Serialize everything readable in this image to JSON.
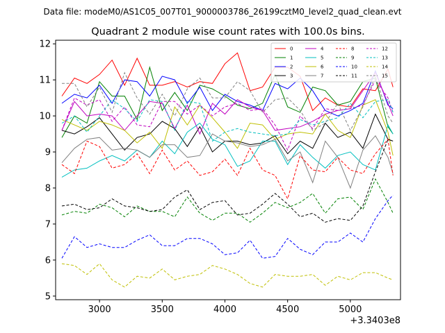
{
  "header": {
    "file_line": "Data file: modeM0/AS1C05_007T01_9000003786_26199cztM0_level2_quad_clean.evt"
  },
  "chart_data": {
    "type": "line",
    "title": "Quadrant 2 module wise count rates with 100.0s bins.",
    "xlabel": "",
    "ylabel": "",
    "x_offset_label": "+3.3403e8",
    "xlim": [
      2650,
      5400
    ],
    "ylim": [
      4.9,
      12.1
    ],
    "x_ticks": [
      3000,
      3500,
      4000,
      4500,
      5000
    ],
    "y_ticks": [
      5,
      6,
      7,
      8,
      9,
      10,
      11,
      12
    ],
    "legend_position": "top-right",
    "x": [
      2700,
      2800,
      2900,
      3000,
      3100,
      3200,
      3300,
      3400,
      3500,
      3600,
      3700,
      3800,
      3900,
      4000,
      4100,
      4200,
      4300,
      4400,
      4500,
      4600,
      4700,
      4800,
      4900,
      5000,
      5100,
      5200,
      5300,
      5340
    ],
    "series": [
      {
        "name": "0",
        "color": "#ff0000",
        "style": "solid",
        "values": [
          10.55,
          11.05,
          10.9,
          11.15,
          11.55,
          10.85,
          11.6,
          10.85,
          10.85,
          10.95,
          10.8,
          10.95,
          10.9,
          11.45,
          11.75,
          10.7,
          10.8,
          11.35,
          11.35,
          11.1,
          10.15,
          10.5,
          10.3,
          10.25,
          10.75,
          10.7,
          11.3,
          10.8
        ]
      },
      {
        "name": "1",
        "color": "#008000",
        "style": "solid",
        "values": [
          9.4,
          10.0,
          9.8,
          10.95,
          10.55,
          10.55,
          9.9,
          11.35,
          10.15,
          10.65,
          10.15,
          10.85,
          10.75,
          10.55,
          10.3,
          10.2,
          10.35,
          11.15,
          10.25,
          10.1,
          10.8,
          10.7,
          10.3,
          10.4,
          10.95,
          11.05,
          9.7,
          9.5
        ]
      },
      {
        "name": "2",
        "color": "#0000ff",
        "style": "solid",
        "values": [
          10.35,
          10.6,
          10.5,
          10.85,
          10.35,
          11.0,
          10.95,
          10.55,
          11.1,
          11.0,
          10.35,
          10.8,
          10.15,
          10.6,
          10.4,
          10.3,
          10.15,
          10.9,
          10.75,
          11.05,
          10.7,
          10.15,
          10.0,
          10.15,
          10.35,
          11.25,
          10.3,
          10.2
        ]
      },
      {
        "name": "3",
        "color": "#000000",
        "style": "solid",
        "values": [
          9.6,
          9.5,
          9.7,
          9.95,
          9.5,
          9.05,
          9.4,
          9.5,
          9.85,
          9.65,
          9.15,
          9.7,
          9.0,
          9.3,
          9.3,
          9.2,
          9.25,
          9.45,
          8.95,
          9.3,
          9.1,
          9.8,
          9.4,
          9.55,
          9.1,
          10.05,
          9.35,
          9.3
        ]
      },
      {
        "name": "4",
        "color": "#bf00bf",
        "style": "solid",
        "values": [
          9.6,
          10.4,
          10.0,
          10.05,
          10.0,
          9.6,
          10.0,
          10.4,
          10.35,
          9.65,
          10.3,
          9.5,
          10.35,
          10.05,
          10.45,
          10.25,
          10.15,
          9.6,
          9.65,
          9.7,
          9.85,
          10.05,
          10.15,
          10.2,
          10.7,
          11.2,
          10.35,
          10.0
        ]
      },
      {
        "name": "5",
        "color": "#00bfbf",
        "style": "solid",
        "values": [
          8.3,
          8.5,
          8.55,
          8.75,
          8.9,
          8.75,
          9.05,
          8.85,
          9.3,
          8.95,
          9.55,
          9.8,
          9.35,
          9.2,
          8.6,
          8.75,
          9.3,
          9.3,
          8.65,
          9.2,
          8.85,
          8.55,
          8.9,
          9.0,
          8.65,
          8.5,
          9.75,
          9.5
        ]
      },
      {
        "name": "6",
        "color": "#bfbf00",
        "style": "solid",
        "values": [
          9.9,
          9.75,
          9.6,
          9.85,
          9.75,
          9.6,
          9.25,
          9.55,
          9.1,
          10.25,
          9.75,
          10.3,
          9.95,
          9.55,
          9.1,
          9.8,
          9.75,
          9.35,
          9.5,
          9.55,
          9.5,
          10.05,
          9.6,
          9.4,
          10.3,
          10.45,
          9.55,
          8.9
        ]
      },
      {
        "name": "7",
        "color": "#808080",
        "style": "solid",
        "values": [
          8.7,
          9.1,
          9.35,
          9.4,
          9.05,
          9.1,
          9.05,
          8.85,
          9.2,
          9.2,
          8.85,
          8.9,
          9.5,
          9.3,
          9.25,
          9.15,
          9.2,
          9.35,
          8.75,
          9.0,
          8.15,
          9.3,
          8.85,
          8.0,
          9.05,
          9.45,
          8.85,
          8.4
        ]
      },
      {
        "name": "8",
        "color": "#ff0000",
        "style": "dashed",
        "values": [
          8.65,
          8.4,
          9.3,
          9.15,
          8.55,
          8.65,
          8.95,
          8.4,
          9.05,
          8.5,
          8.75,
          8.35,
          8.45,
          8.8,
          8.35,
          9.1,
          8.5,
          8.35,
          7.7,
          8.9,
          8.5,
          8.45,
          8.85,
          8.5,
          8.4,
          8.95,
          9.35,
          8.35
        ]
      },
      {
        "name": "9",
        "color": "#008000",
        "style": "dashed",
        "values": [
          7.25,
          7.35,
          7.3,
          7.55,
          7.45,
          7.2,
          7.5,
          7.35,
          7.35,
          7.2,
          7.75,
          7.3,
          7.1,
          7.3,
          7.3,
          7.05,
          7.3,
          7.6,
          7.45,
          7.6,
          7.85,
          7.3,
          7.7,
          7.75,
          7.4,
          8.25,
          7.6,
          7.3
        ]
      },
      {
        "name": "10",
        "color": "#0000ff",
        "style": "dashed",
        "values": [
          6.05,
          6.65,
          6.35,
          6.45,
          6.35,
          6.35,
          6.55,
          6.7,
          6.4,
          6.4,
          6.6,
          6.6,
          6.45,
          6.15,
          6.2,
          6.55,
          6.05,
          6.1,
          6.6,
          6.3,
          6.15,
          6.5,
          6.5,
          6.75,
          6.5,
          7.15,
          7.65,
          7.8
        ]
      },
      {
        "name": "11",
        "color": "#000000",
        "style": "dashed",
        "values": [
          7.5,
          7.55,
          7.4,
          7.45,
          7.7,
          7.5,
          7.45,
          7.35,
          7.4,
          7.75,
          7.95,
          7.4,
          7.6,
          7.65,
          7.25,
          7.3,
          7.55,
          7.85,
          7.55,
          7.2,
          7.3,
          7.05,
          7.15,
          7.1,
          7.5,
          8.45,
          9.35,
          9.3
        ]
      },
      {
        "name": "12",
        "color": "#bf00bf",
        "style": "dashed",
        "values": [
          9.6,
          10.5,
          10.3,
          10.45,
          9.85,
          10.25,
          9.75,
          9.7,
          10.4,
          10.4,
          10.05,
          10.3,
          10.0,
          10.25,
          10.35,
          10.15,
          10.2,
          9.75,
          9.05,
          10.0,
          9.65,
          10.2,
          10.15,
          10.2,
          10.3,
          11.0,
          10.5,
          10.1
        ]
      },
      {
        "name": "13",
        "color": "#00bfbf",
        "style": "dashed",
        "values": [
          9.8,
          10.0,
          9.55,
          10.0,
          10.45,
          10.2,
          9.85,
          10.45,
          10.4,
          9.6,
          10.4,
          10.35,
          9.3,
          9.55,
          9.65,
          9.55,
          9.5,
          9.45,
          9.5,
          9.9,
          9.75,
          9.85,
          9.95,
          10.35,
          9.95,
          10.4,
          10.45,
          10.1
        ]
      },
      {
        "name": "14",
        "color": "#bfbf00",
        "style": "dashed",
        "values": [
          5.9,
          5.85,
          5.6,
          5.9,
          5.45,
          5.25,
          5.55,
          5.5,
          5.75,
          5.45,
          5.55,
          5.6,
          5.85,
          5.75,
          5.6,
          5.35,
          5.25,
          5.6,
          5.55,
          5.55,
          5.6,
          5.3,
          5.55,
          5.45,
          5.65,
          5.65,
          5.5,
          5.45
        ]
      },
      {
        "name": "15",
        "color": "#808080",
        "style": "dashed",
        "values": [
          10.9,
          10.9,
          10.25,
          10.8,
          10.1,
          11.2,
          10.5,
          10.05,
          10.6,
          10.0,
          10.75,
          11.05,
          10.5,
          10.5,
          10.95,
          10.7,
          10.1,
          10.45,
          10.5,
          10.15,
          9.6,
          9.8,
          10.35,
          9.6,
          10.25,
          11.1,
          10.0,
          9.8
        ]
      }
    ]
  }
}
